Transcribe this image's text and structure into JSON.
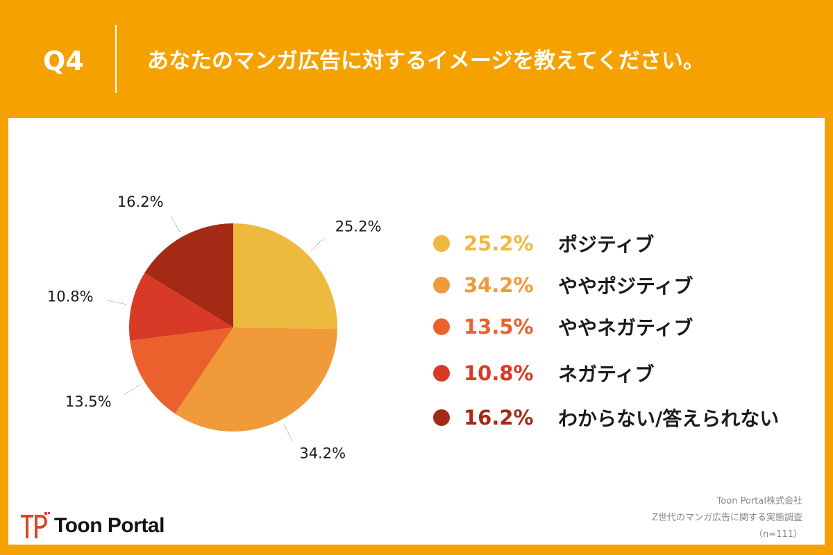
{
  "header": {
    "q_label": "Q4",
    "question": "あなたのマンガ広告に対するイメージを教えてください。"
  },
  "chart_data": {
    "type": "pie",
    "title": "",
    "slices": [
      {
        "label": "ポジティブ",
        "value": 25.2,
        "display": "25.2%",
        "color": "#edb93e"
      },
      {
        "label": "ややポジティブ",
        "value": 34.2,
        "display": "34.2%",
        "color": "#f09a3a"
      },
      {
        "label": "ややネガティブ",
        "value": 13.5,
        "display": "13.5%",
        "color": "#ea612e"
      },
      {
        "label": "ネガティブ",
        "value": 10.8,
        "display": "10.8%",
        "color": "#d93a27"
      },
      {
        "label": "わからない/答えられない",
        "value": 16.2,
        "display": "16.2%",
        "color": "#a52a16"
      }
    ],
    "legend_position": "right"
  },
  "logo": {
    "text": "Toon Portal",
    "icon": "toon-portal-logo-icon"
  },
  "credits": {
    "company": "Toon Portal株式会社",
    "survey": "Z世代のマンガ広告に関する実態調査",
    "sample": "（n=111）"
  }
}
